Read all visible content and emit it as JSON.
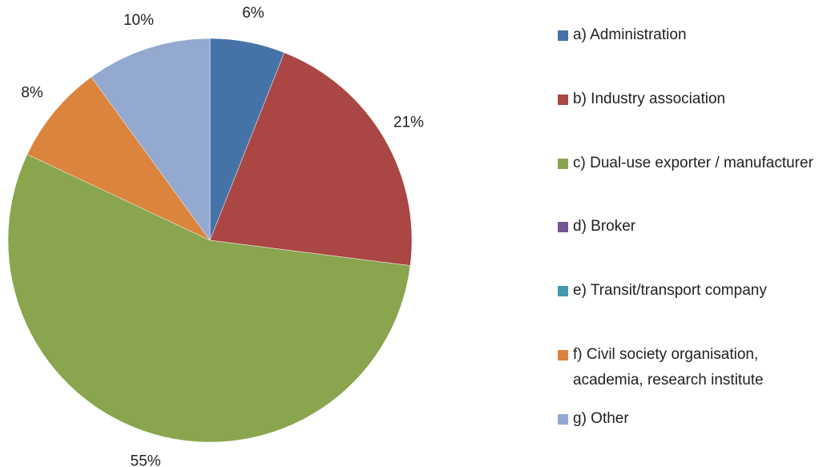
{
  "chart_data": {
    "type": "pie",
    "categories": [
      "a) Administration",
      "b) Industry association",
      "c) Dual-use exporter / manufacturer",
      "d) Broker",
      "e) Transit/transport company",
      "f) Civil society organisation, academia, research institute",
      "g) Other"
    ],
    "values": [
      6,
      21,
      55,
      0,
      0,
      8,
      10
    ],
    "value_labels": [
      "6%",
      "21%",
      "55%",
      null,
      null,
      "8%",
      "10%"
    ],
    "colors": [
      "#4572a7",
      "#aa4643",
      "#89a54e",
      "#71588f",
      "#4198af",
      "#db843d",
      "#93a9cf"
    ],
    "legend": "right"
  }
}
